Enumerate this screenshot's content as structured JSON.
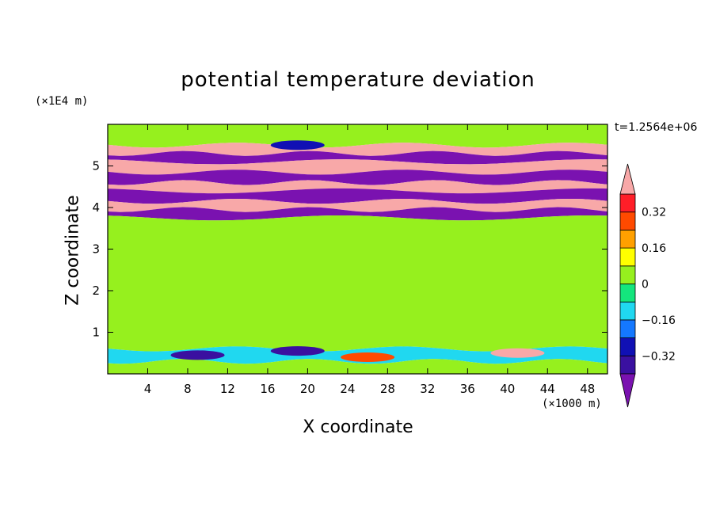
{
  "chart_data": {
    "type": "heatmap",
    "title": "potential temperature deviation",
    "xlabel": "X coordinate",
    "ylabel": "Z coordinate",
    "x_unit": "(×1000 m)",
    "z_unit": "(×1E4 m)",
    "time_label": "t=1.2564e+06",
    "xlim": [
      0,
      50
    ],
    "ylim": [
      0,
      6
    ],
    "xticks": [
      4,
      8,
      12,
      16,
      20,
      24,
      28,
      32,
      36,
      40,
      44,
      48
    ],
    "yticks": [
      1,
      2,
      3,
      4,
      5
    ],
    "colorbar": {
      "levels": [
        -0.4,
        -0.32,
        -0.24,
        -0.16,
        -0.08,
        0,
        0.08,
        0.16,
        0.24,
        0.32,
        0.4
      ],
      "labels": [
        "0.32",
        "0.16",
        "0",
        "−0.16",
        "−0.32"
      ],
      "label_values": [
        0.32,
        0.16,
        0,
        -0.16,
        -0.32
      ],
      "colors": [
        "#7a12b0",
        "#3a10a0",
        "#1010b4",
        "#1478ff",
        "#20d8f0",
        "#14e67d",
        "#96f01e",
        "#ffff00",
        "#ffa000",
        "#ff4a00",
        "#ff1e28",
        "#f8a8a8"
      ],
      "extend": "both"
    },
    "bands": [
      {
        "z0": 5.5,
        "z1": 6.0,
        "value": 0.05
      },
      {
        "z0": 5.3,
        "z1": 5.5,
        "value": 0.45
      },
      {
        "z0": 5.1,
        "z1": 5.3,
        "value": -0.45
      },
      {
        "z0": 4.85,
        "z1": 5.1,
        "value": 0.45
      },
      {
        "z0": 4.6,
        "z1": 4.85,
        "value": -0.45
      },
      {
        "z0": 4.4,
        "z1": 4.6,
        "value": 0.45
      },
      {
        "z0": 4.15,
        "z1": 4.4,
        "value": -0.45
      },
      {
        "z0": 3.95,
        "z1": 4.15,
        "value": 0.45
      },
      {
        "z0": 3.75,
        "z1": 3.95,
        "value": -0.45
      },
      {
        "z0": 0.6,
        "z1": 3.75,
        "value": 0.02
      },
      {
        "z0": 0.3,
        "z1": 0.6,
        "value": -0.12
      },
      {
        "z0": 0.0,
        "z1": 0.3,
        "value": 0.05
      }
    ],
    "features": [
      {
        "x": 19,
        "z": 5.5,
        "value": -0.3
      },
      {
        "x": 26,
        "z": 0.4,
        "value": 0.3
      },
      {
        "x": 41,
        "z": 0.5,
        "value": 0.45
      },
      {
        "x": 9,
        "z": 0.45,
        "value": -0.35
      },
      {
        "x": 19,
        "z": 0.55,
        "value": -0.35
      }
    ]
  }
}
